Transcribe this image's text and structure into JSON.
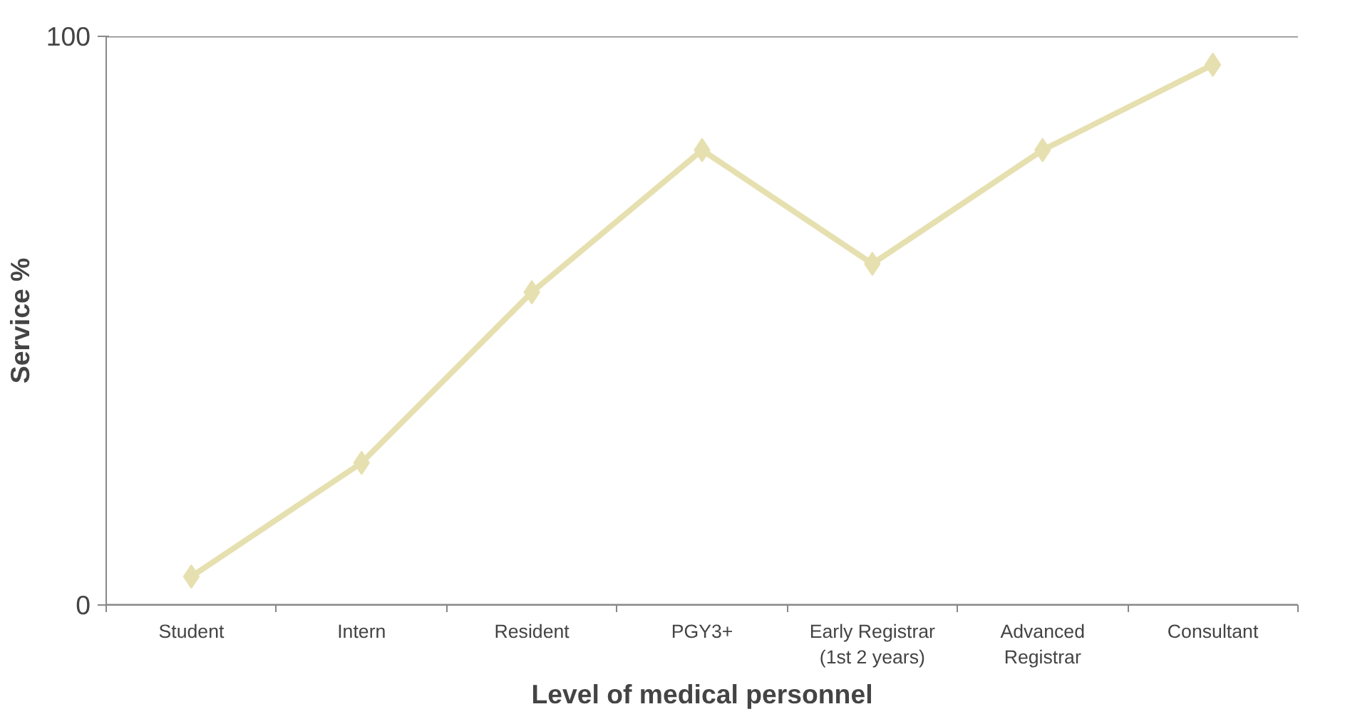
{
  "chart_data": {
    "type": "line",
    "xlabel": "Level of medical personnel",
    "ylabel": "Service %",
    "categories": [
      "Student",
      "Intern",
      "Resident",
      "PGY3+",
      "Early Registrar\n(1st 2 years)",
      "Advanced\nRegistrar",
      "Consultant"
    ],
    "series": [
      {
        "color": "#e6e0b0",
        "values": [
          5,
          25,
          55,
          80,
          60,
          80,
          95
        ]
      }
    ],
    "ylim": [
      0,
      100
    ],
    "yticks": [
      0,
      100
    ],
    "grid": "y",
    "marker": "diamond",
    "line_style": "solid"
  }
}
